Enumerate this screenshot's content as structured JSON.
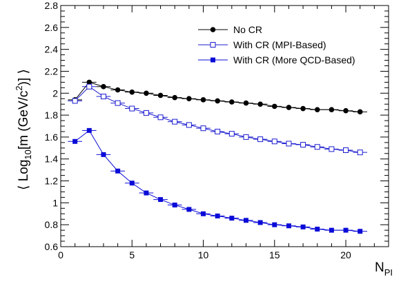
{
  "chart_data": {
    "type": "scatter",
    "title": "",
    "xlabel_main": "N",
    "xlabel_sub": "PI",
    "ylabel": "⟨ Log10[m (GeV/c2)] ⟩",
    "ylabel_parts": {
      "open": "⟨ Log",
      "sub": "10",
      "mid": "[m (GeV/c",
      "sup": "2",
      "close": ")] ⟩"
    },
    "xlim": [
      0,
      23
    ],
    "ylim": [
      0.6,
      2.8
    ],
    "x_ticks": [
      0,
      5,
      10,
      15,
      20
    ],
    "x_tick_labels": [
      "0",
      "5",
      "10",
      "15",
      "20"
    ],
    "y_ticks": [
      0.6,
      0.8,
      1.0,
      1.2,
      1.4,
      1.6,
      1.8,
      2.0,
      2.2,
      2.4,
      2.6,
      2.8
    ],
    "y_tick_labels": [
      "0.6",
      "0.8",
      "1",
      "1.2",
      "1.4",
      "1.6",
      "1.8",
      "2",
      "2.2",
      "2.4",
      "2.6",
      "2.8"
    ],
    "legend_position": "top-right",
    "grid": false,
    "x": [
      1,
      2,
      3,
      4,
      5,
      6,
      7,
      8,
      9,
      10,
      11,
      12,
      13,
      14,
      15,
      16,
      17,
      18,
      19,
      20,
      21
    ],
    "series": [
      {
        "name": "No CR",
        "marker": "filled-circle",
        "color": "#000000",
        "line": true,
        "values": [
          1.94,
          2.1,
          2.06,
          2.03,
          2.01,
          2.0,
          1.98,
          1.96,
          1.95,
          1.94,
          1.93,
          1.92,
          1.91,
          1.9,
          1.88,
          1.87,
          1.86,
          1.85,
          1.85,
          1.84,
          1.83
        ]
      },
      {
        "name": "With CR (MPI-Based)",
        "marker": "open-square",
        "color": "#1a1ad0",
        "line": true,
        "values": [
          1.93,
          2.06,
          1.97,
          1.91,
          1.86,
          1.82,
          1.78,
          1.74,
          1.71,
          1.68,
          1.65,
          1.63,
          1.6,
          1.58,
          1.56,
          1.54,
          1.53,
          1.51,
          1.49,
          1.48,
          1.46
        ]
      },
      {
        "name": "With CR (More QCD-Based)",
        "marker": "filled-square",
        "color": "#0a0ad8",
        "line": true,
        "values": [
          1.56,
          1.66,
          1.44,
          1.29,
          1.18,
          1.09,
          1.03,
          0.98,
          0.94,
          0.9,
          0.88,
          0.86,
          0.84,
          0.82,
          0.8,
          0.79,
          0.78,
          0.76,
          0.75,
          0.75,
          0.74
        ]
      }
    ]
  }
}
